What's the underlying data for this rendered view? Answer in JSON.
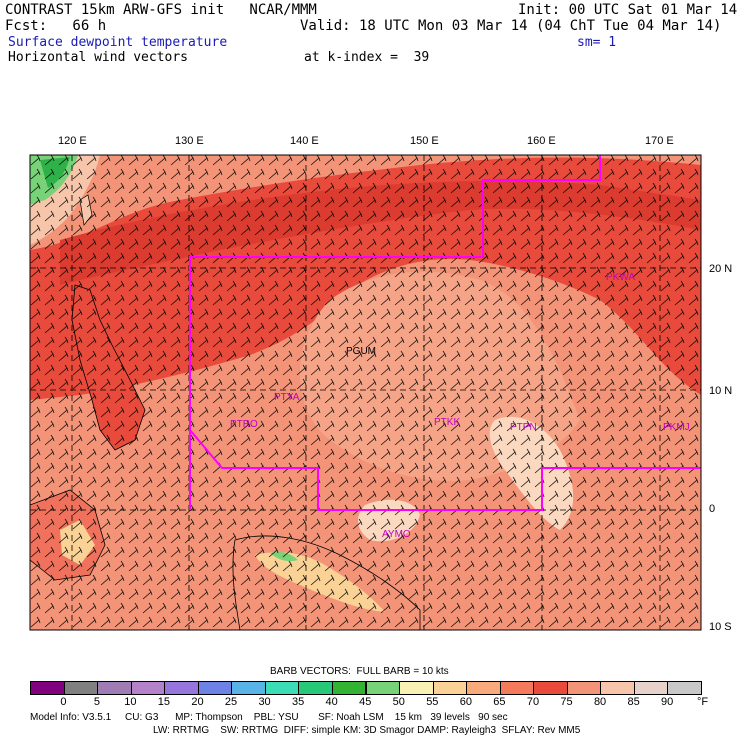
{
  "header": {
    "title": "CONTRAST 15km ARW-GFS init   NCAR/MMM",
    "init": "Init: 00 UTC Sat 01 Mar 14",
    "fcst": "Fcst:   66 h",
    "valid": "Valid: 18 UTC Mon 03 Mar 14 (04 ChT Tue 04 Mar 14)",
    "field1": "Surface dewpoint temperature",
    "sm": "sm= 1",
    "field2": "Horizontal wind vectors",
    "kindex": "at k-index =  39"
  },
  "map": {
    "lon_labels": [
      "120 E",
      "130 E",
      "140 E",
      "150 E",
      "160 E",
      "170 E"
    ],
    "lat_labels": [
      "20 N",
      "10 N",
      "0",
      "10 S"
    ],
    "stations": [
      "PGUM",
      "PTYA",
      "PTRO",
      "PTKK",
      "PTPN",
      "PKMJ",
      "PKWA",
      "AYMO"
    ],
    "colors": {
      "band_red": "#e84a3c",
      "warm": "#f0725c",
      "salmon": "#f5937a",
      "light": "#f9b89c",
      "pale": "#fbd8c0",
      "green": "#2fb14a",
      "border": "#ff00ff"
    }
  },
  "legend": {
    "title": "BARB VECTORS:  FULL BARB = 10 kts",
    "ticks": [
      "0",
      "5",
      "10",
      "15",
      "20",
      "25",
      "30",
      "35",
      "40",
      "45",
      "50",
      "55",
      "60",
      "65",
      "70",
      "75",
      "80",
      "85",
      "90"
    ],
    "unit": "°F",
    "colors": [
      "#800080",
      "#808080",
      "#a07cb4",
      "#b482c8",
      "#9676dc",
      "#6e82e6",
      "#58b4e6",
      "#3cdcb4",
      "#28c878",
      "#32b432",
      "#78d278",
      "#f8f0b4",
      "#fad296",
      "#f8aa7c",
      "#f57a5c",
      "#e84a3c",
      "#f39478",
      "#f7c6aa",
      "#e6d2c8",
      "#c8c8c8"
    ]
  },
  "footer": {
    "line1": "Model Info: V3.5.1     CU: G3      MP: Thompson    PBL: YSU       SF: Noah LSM    15 km   39 levels   90 sec",
    "line2": "LW: RRTMG    SW: RRTMG  DIFF: simple KM: 3D Smagor DAMP: Rayleigh3  SFLAY: Rev MM5"
  }
}
